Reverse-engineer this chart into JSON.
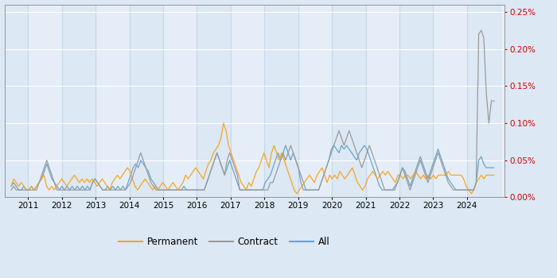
{
  "bg_color": "#dce8f4",
  "plot_bg_color": "#e5eef8",
  "grid_color": "#c8d8e8",
  "colors": {
    "permanent": "#f5a623",
    "contract": "#9b9b9b",
    "all": "#6aa3cc"
  },
  "legend_labels": [
    "Permanent",
    "Contract",
    "All"
  ],
  "xlim": [
    2010.3,
    2025.1
  ],
  "ylim": [
    0.0,
    0.0026
  ],
  "y_ticks": [
    0.0,
    0.0005,
    0.001,
    0.0015,
    0.002,
    0.0025
  ],
  "y_tick_labels": [
    "0.00%",
    "0.05%",
    "0.10%",
    "0.15%",
    "0.20%",
    "0.25%"
  ],
  "x_ticks": [
    2011,
    2012,
    2013,
    2014,
    2015,
    2016,
    2017,
    2018,
    2019,
    2020,
    2021,
    2022,
    2023,
    2024
  ],
  "permanent": [
    0.00015,
    0.00025,
    0.0002,
    0.00015,
    0.0002,
    0.00015,
    0.0001,
    0.0001,
    0.00015,
    0.0001,
    0.00015,
    0.0002,
    0.00025,
    0.0003,
    0.00015,
    0.0001,
    0.00015,
    0.0001,
    0.00015,
    0.0002,
    0.00025,
    0.0002,
    0.00015,
    0.0002,
    0.00025,
    0.0003,
    0.00025,
    0.0002,
    0.00025,
    0.0002,
    0.00025,
    0.0002,
    0.00025,
    0.0002,
    0.00015,
    0.0002,
    0.00025,
    0.0002,
    0.00015,
    0.0001,
    0.0002,
    0.00025,
    0.0003,
    0.00025,
    0.0003,
    0.00035,
    0.0004,
    0.00035,
    0.00025,
    0.00015,
    0.0001,
    0.00015,
    0.0002,
    0.00025,
    0.0002,
    0.00015,
    0.0001,
    0.00015,
    0.0001,
    0.00015,
    0.0002,
    0.00015,
    0.0001,
    0.00015,
    0.0002,
    0.00015,
    0.0001,
    0.00015,
    0.0002,
    0.0003,
    0.00025,
    0.0003,
    0.00035,
    0.0004,
    0.00035,
    0.0003,
    0.00025,
    0.00035,
    0.00045,
    0.0005,
    0.0006,
    0.00065,
    0.0007,
    0.0008,
    0.001,
    0.0009,
    0.0007,
    0.0006,
    0.0005,
    0.0004,
    0.0003,
    0.0002,
    0.00015,
    0.0001,
    0.0002,
    0.00015,
    0.00025,
    0.00035,
    0.0004,
    0.0005,
    0.0006,
    0.0005,
    0.0004,
    0.0006,
    0.0007,
    0.0006,
    0.0005,
    0.0006,
    0.0005,
    0.0004,
    0.0003,
    0.0002,
    0.0001,
    5e-05,
    0.0001,
    0.00015,
    0.0002,
    0.00025,
    0.0003,
    0.00025,
    0.0002,
    0.0003,
    0.00035,
    0.0004,
    0.0003,
    0.0002,
    0.0003,
    0.00025,
    0.0003,
    0.00025,
    0.00035,
    0.0003,
    0.00025,
    0.0003,
    0.00035,
    0.0004,
    0.0003,
    0.0002,
    0.00015,
    0.0001,
    0.00015,
    0.00025,
    0.0003,
    0.00035,
    0.0003,
    0.00025,
    0.0003,
    0.00035,
    0.0003,
    0.00035,
    0.0003,
    0.00025,
    0.0002,
    0.0003,
    0.0003,
    0.00025,
    0.0003,
    0.0003,
    0.00025,
    0.0003,
    0.00035,
    0.0003,
    0.00025,
    0.0003,
    0.00025,
    0.0003,
    0.00025,
    0.0003,
    0.00025,
    0.0003,
    0.0003,
    0.0003,
    0.0003,
    0.00035,
    0.0003,
    0.0003,
    0.0003,
    0.0003,
    0.0003,
    0.00025,
    0.00015,
    0.0001,
    5e-05,
    0.0001,
    0.0002,
    0.00025,
    0.0003,
    0.00025,
    0.0003,
    0.0003,
    0.0003,
    0.0003
  ],
  "contract": [
    0.0001,
    0.00015,
    0.0001,
    0.0001,
    0.0001,
    0.0001,
    0.0001,
    0.0001,
    0.0001,
    0.0001,
    0.0001,
    0.0002,
    0.0003,
    0.0004,
    0.0005,
    0.0004,
    0.0003,
    0.0002,
    0.0001,
    0.0001,
    0.0001,
    0.0001,
    0.0001,
    0.0001,
    0.0001,
    0.0001,
    0.0001,
    0.0001,
    0.0001,
    0.0001,
    0.0001,
    0.0001,
    0.0002,
    0.00025,
    0.0002,
    0.00015,
    0.0001,
    0.0001,
    0.0001,
    0.0001,
    0.0001,
    0.0001,
    0.0001,
    0.0001,
    0.0001,
    0.0001,
    0.00015,
    0.0002,
    0.0003,
    0.0004,
    0.0005,
    0.0006,
    0.0005,
    0.0004,
    0.0003,
    0.0002,
    0.00015,
    0.0001,
    0.0001,
    0.0001,
    0.0001,
    0.0001,
    0.0001,
    0.0001,
    0.0001,
    0.0001,
    0.0001,
    0.0001,
    0.0001,
    0.0001,
    0.0001,
    0.0001,
    0.0001,
    0.0001,
    0.0001,
    0.0001,
    0.0001,
    0.0002,
    0.0003,
    0.0004,
    0.0005,
    0.0006,
    0.0005,
    0.0004,
    0.0003,
    0.0005,
    0.0006,
    0.0005,
    0.0004,
    0.0003,
    0.0001,
    0.0001,
    0.0001,
    0.0001,
    0.0001,
    0.0001,
    0.0001,
    0.0001,
    0.0001,
    0.0001,
    0.0001,
    0.0001,
    0.0002,
    0.0002,
    0.0003,
    0.0004,
    0.0005,
    0.0006,
    0.0005,
    0.0006,
    0.0007,
    0.0006,
    0.0005,
    0.0004,
    0.0002,
    0.0001,
    0.0001,
    0.0001,
    0.0001,
    0.0001,
    0.0001,
    0.0001,
    0.0002,
    0.0003,
    0.0004,
    0.0005,
    0.0006,
    0.0007,
    0.0008,
    0.0009,
    0.0008,
    0.0007,
    0.0008,
    0.0009,
    0.0008,
    0.0007,
    0.0006,
    0.0005,
    0.0004,
    0.0005,
    0.0006,
    0.0007,
    0.0006,
    0.0005,
    0.0004,
    0.0003,
    0.0002,
    0.0001,
    0.0001,
    0.0001,
    0.0001,
    0.0001,
    0.0002,
    0.0003,
    0.0004,
    0.0003,
    0.0002,
    0.0001,
    0.0002,
    0.0003,
    0.0004,
    0.0005,
    0.0004,
    0.0003,
    0.0002,
    0.0003,
    0.0004,
    0.0005,
    0.0006,
    0.0005,
    0.0004,
    0.0003,
    0.0002,
    0.00015,
    0.0001,
    0.0001,
    0.0001,
    0.0001,
    0.0001,
    0.0001,
    0.0001,
    0.0001,
    0.0001,
    0.0002,
    0.0022,
    0.00225,
    0.00215,
    0.0014,
    0.001,
    0.0013,
    0.0013
  ],
  "all": [
    0.00015,
    0.0002,
    0.00015,
    0.0001,
    0.0001,
    0.00015,
    0.0001,
    0.0001,
    0.00015,
    0.0001,
    0.00015,
    0.0002,
    0.00025,
    0.00035,
    0.00045,
    0.00035,
    0.00025,
    0.0002,
    0.00015,
    0.0001,
    0.00015,
    0.0001,
    0.00015,
    0.0001,
    0.00015,
    0.0001,
    0.00015,
    0.0001,
    0.00015,
    0.0001,
    0.00015,
    0.0001,
    0.0002,
    0.00025,
    0.0002,
    0.00015,
    0.0001,
    0.0001,
    0.00015,
    0.0001,
    0.00015,
    0.0001,
    0.00015,
    0.0001,
    0.00015,
    0.0001,
    0.0002,
    0.0003,
    0.0004,
    0.00045,
    0.0004,
    0.0005,
    0.00045,
    0.0004,
    0.00035,
    0.00025,
    0.0002,
    0.00015,
    0.0001,
    0.0001,
    0.0001,
    0.0001,
    0.0001,
    0.0001,
    0.0001,
    0.0001,
    0.0001,
    0.0001,
    0.00015,
    0.0001,
    0.0001,
    0.0001,
    0.0001,
    0.0001,
    0.0001,
    0.0001,
    0.0001,
    0.0002,
    0.0003,
    0.0004,
    0.0005,
    0.0006,
    0.0005,
    0.0004,
    0.0003,
    0.0004,
    0.0005,
    0.0004,
    0.0003,
    0.0002,
    0.0001,
    0.0001,
    0.0001,
    0.0001,
    0.0001,
    0.0001,
    0.0001,
    0.0001,
    0.0001,
    0.0001,
    0.0002,
    0.00025,
    0.0003,
    0.0004,
    0.0005,
    0.0006,
    0.0005,
    0.0006,
    0.0007,
    0.0006,
    0.0005,
    0.0006,
    0.0005,
    0.0004,
    0.0003,
    0.0002,
    0.0001,
    0.0001,
    0.0001,
    0.0001,
    0.0001,
    0.0001,
    0.0002,
    0.0003,
    0.0004,
    0.0005,
    0.00065,
    0.0007,
    0.00065,
    0.0006,
    0.0007,
    0.00065,
    0.0007,
    0.00065,
    0.0006,
    0.00055,
    0.0005,
    0.0006,
    0.00065,
    0.0007,
    0.00065,
    0.00055,
    0.00045,
    0.00035,
    0.00025,
    0.00015,
    0.0001,
    0.0001,
    0.0001,
    0.0001,
    0.0001,
    0.00015,
    0.0002,
    0.0003,
    0.0004,
    0.00035,
    0.00025,
    0.00015,
    0.00025,
    0.00035,
    0.00045,
    0.00055,
    0.00045,
    0.00035,
    0.00025,
    0.00035,
    0.00045,
    0.00055,
    0.00065,
    0.00055,
    0.00045,
    0.00035,
    0.00025,
    0.0002,
    0.00015,
    0.0001,
    0.0001,
    0.0001,
    0.0001,
    0.0001,
    0.0001,
    0.0001,
    0.0001,
    0.0002,
    0.0005,
    0.00055,
    0.00045,
    0.0004,
    0.0004,
    0.0004,
    0.0004
  ]
}
